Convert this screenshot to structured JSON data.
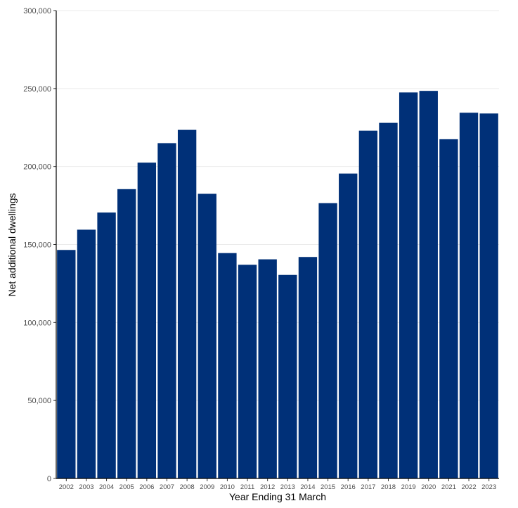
{
  "chart_data": {
    "type": "bar",
    "categories": [
      "2002",
      "2003",
      "2004",
      "2005",
      "2006",
      "2007",
      "2008",
      "2009",
      "2010",
      "2011",
      "2012",
      "2013",
      "2014",
      "2015",
      "2016",
      "2017",
      "2018",
      "2019",
      "2020",
      "2021",
      "2022",
      "2023"
    ],
    "values": [
      146500,
      159500,
      170500,
      185500,
      202500,
      215000,
      223500,
      182500,
      144500,
      137000,
      140500,
      130500,
      142000,
      176500,
      195500,
      223000,
      228000,
      247500,
      248500,
      217500,
      234500,
      234000
    ],
    "xlabel": "Year Ending 31 March",
    "ylabel": "Net additional dwellings",
    "ylim": [
      0,
      300000
    ],
    "yticks": [
      0,
      50000,
      100000,
      150000,
      200000,
      250000,
      300000
    ],
    "ytick_labels": [
      "0",
      "50,000",
      "100,000",
      "150,000",
      "200,000",
      "250,000",
      "300,000"
    ],
    "grid": "horizontal",
    "bar_color": "#003078",
    "legend": "none"
  }
}
